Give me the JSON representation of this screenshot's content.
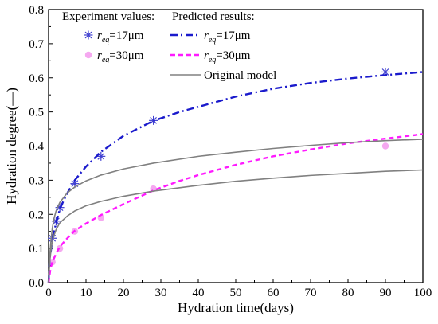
{
  "chart_data": {
    "type": "line",
    "title": "",
    "xlabel": "Hydration time(days)",
    "ylabel": "Hydration degree(—)",
    "xlim": [
      0,
      100
    ],
    "ylim": [
      0,
      0.8
    ],
    "xticks": [
      0,
      10,
      20,
      30,
      40,
      50,
      60,
      70,
      80,
      90,
      100
    ],
    "yticks": [
      0.0,
      0.1,
      0.2,
      0.3,
      0.4,
      0.5,
      0.6,
      0.7,
      0.8
    ],
    "grid": false,
    "legend": {
      "placement": "top-left",
      "header_experiment": "Experiment values:",
      "header_predicted": "Predicted results:",
      "label_exp_17": "r",
      "sub_exp_17": "eq",
      "rest_exp_17": "=17μm",
      "label_exp_30": "r",
      "sub_exp_30": "eq",
      "rest_exp_30": "=30μm",
      "label_pred_17": "r",
      "sub_pred_17": "eq",
      "rest_pred_17": "=17μm",
      "label_pred_30": "r",
      "sub_pred_30": "eq",
      "rest_pred_30": "=30μm",
      "label_original": "Original model"
    },
    "colors": {
      "exp_17": "#4040d0",
      "exp_30": "#f5a8f0",
      "pred_17": "#1a1acc",
      "pred_30": "#ff1aff",
      "original": "#808080"
    },
    "series": [
      {
        "key": "exp_17",
        "kind": "scatter",
        "marker": "asterisk",
        "x": [
          1,
          2,
          3,
          7,
          14,
          28,
          90
        ],
        "y": [
          0.13,
          0.18,
          0.22,
          0.29,
          0.37,
          0.475,
          0.617
        ]
      },
      {
        "key": "exp_30",
        "kind": "scatter",
        "marker": "circle",
        "x": [
          1,
          3,
          7,
          14,
          28,
          90
        ],
        "y": [
          0.06,
          0.1,
          0.15,
          0.19,
          0.275,
          0.4
        ]
      },
      {
        "key": "pred_17",
        "kind": "line",
        "dash": "dash-dot",
        "x": [
          0,
          0.3,
          0.7,
          1,
          1.5,
          2,
          3,
          4,
          5,
          7,
          10,
          14,
          20,
          28,
          35,
          40,
          50,
          60,
          70,
          80,
          90,
          100
        ],
        "y": [
          0,
          0.07,
          0.1,
          0.125,
          0.15,
          0.175,
          0.215,
          0.24,
          0.262,
          0.3,
          0.34,
          0.383,
          0.43,
          0.474,
          0.5,
          0.515,
          0.545,
          0.568,
          0.585,
          0.598,
          0.608,
          0.617
        ]
      },
      {
        "key": "pred_30",
        "kind": "line",
        "dash": "dash",
        "x": [
          0,
          0.5,
          1,
          2,
          3,
          5,
          7,
          10,
          14,
          20,
          28,
          35,
          40,
          50,
          60,
          70,
          80,
          90,
          100
        ],
        "y": [
          0,
          0.04,
          0.06,
          0.085,
          0.105,
          0.13,
          0.152,
          0.173,
          0.198,
          0.23,
          0.27,
          0.298,
          0.315,
          0.345,
          0.37,
          0.39,
          0.408,
          0.422,
          0.435
        ]
      },
      {
        "key": "original_upper",
        "kind": "line",
        "dash": "solid",
        "x": [
          0,
          0.3,
          0.7,
          1,
          1.5,
          2,
          3,
          5,
          7,
          10,
          14,
          20,
          28,
          40,
          50,
          60,
          70,
          80,
          90,
          100
        ],
        "y": [
          0,
          0.08,
          0.13,
          0.16,
          0.19,
          0.21,
          0.235,
          0.263,
          0.28,
          0.298,
          0.315,
          0.333,
          0.35,
          0.37,
          0.382,
          0.393,
          0.402,
          0.41,
          0.416,
          0.42
        ]
      },
      {
        "key": "original_lower",
        "kind": "line",
        "dash": "solid",
        "x": [
          0,
          0.3,
          0.7,
          1,
          1.5,
          2,
          3,
          5,
          7,
          10,
          14,
          20,
          28,
          40,
          50,
          60,
          70,
          80,
          90,
          100
        ],
        "y": [
          0,
          0.06,
          0.1,
          0.12,
          0.14,
          0.155,
          0.175,
          0.195,
          0.21,
          0.225,
          0.238,
          0.253,
          0.268,
          0.285,
          0.297,
          0.306,
          0.314,
          0.32,
          0.326,
          0.33
        ]
      }
    ]
  }
}
